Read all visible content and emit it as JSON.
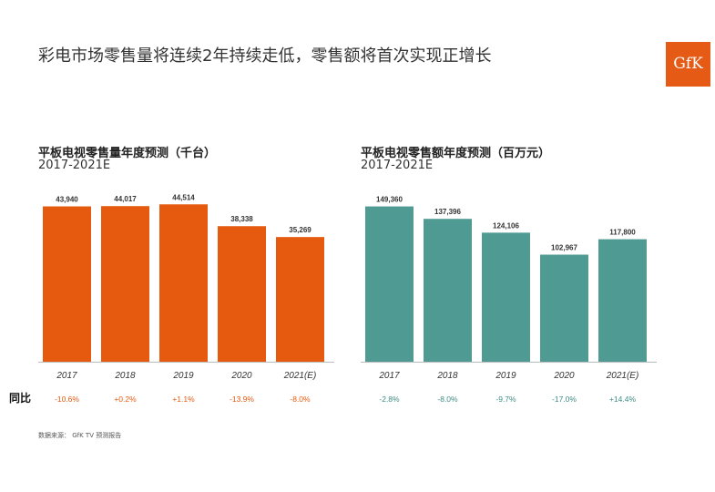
{
  "page": {
    "title": "彩电市场零售量将连续2年持续走低，零售额将首次实现正增长",
    "logo_text": "GfK",
    "yoy_label": "同比",
    "source": "数据来源： GfK TV 预测报告"
  },
  "colors": {
    "left_bar": "#e55a0f",
    "right_bar": "#4f9a93",
    "left_pct": "#e55a0f",
    "right_pct": "#3d8c84",
    "logo": "#e55a14"
  },
  "chart_data": [
    {
      "type": "bar",
      "title": "平板电视零售量年度预测（千台）",
      "subtitle": "2017-2021E",
      "categories": [
        "2017",
        "2018",
        "2019",
        "2020",
        "2021(E)"
      ],
      "values": [
        43940,
        44017,
        44514,
        38338,
        35269
      ],
      "value_labels": [
        "43,940",
        "44,017",
        "44,514",
        "38,338",
        "35,269"
      ],
      "yoy": [
        "-10.6%",
        "+0.2%",
        "+1.1%",
        "-13.9%",
        "-8.0%"
      ],
      "ylim": [
        0,
        50000
      ],
      "grid": false
    },
    {
      "type": "bar",
      "title": "平板电视零售额年度预测（百万元）",
      "subtitle": "2017-2021E",
      "categories": [
        "2017",
        "2018",
        "2019",
        "2020",
        "2021(E)"
      ],
      "values": [
        149360,
        137396,
        124106,
        102967,
        117800
      ],
      "value_labels": [
        "149,360",
        "137,396",
        "124,106",
        "102,967",
        "117,800"
      ],
      "yoy": [
        "-2.8%",
        "-8.0%",
        "-9.7%",
        "-17.0%",
        "+14.4%"
      ],
      "ylim": [
        0,
        170000
      ],
      "grid": false
    }
  ]
}
